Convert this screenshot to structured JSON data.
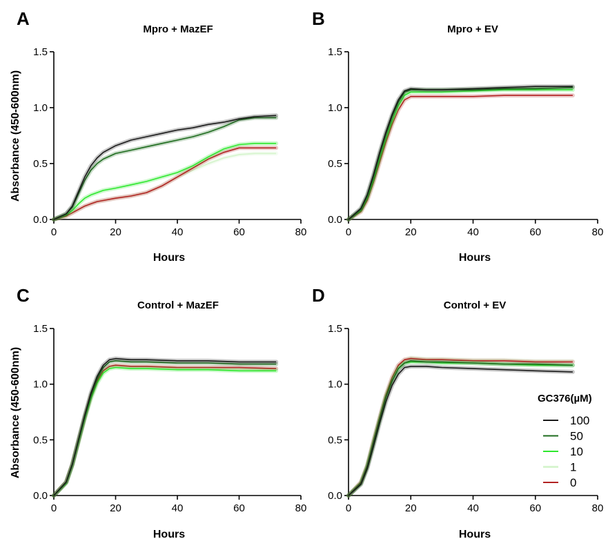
{
  "chart_data": [
    {
      "panel": "A",
      "type": "line",
      "title": "Mpro + MazEF",
      "xlabel": "Hours",
      "ylabel": "Absorbance (450-600nm)",
      "xlim": [
        0,
        80
      ],
      "ylim": [
        0,
        1.5
      ],
      "xticks": [
        "0",
        "20",
        "40",
        "60",
        "80"
      ],
      "yticks": [
        "0.0",
        "0.5",
        "1.0",
        "1.5"
      ],
      "x": [
        0,
        4,
        6,
        8,
        10,
        12,
        14,
        16,
        20,
        25,
        30,
        35,
        40,
        45,
        50,
        55,
        60,
        65,
        72
      ],
      "series": [
        {
          "name": "100",
          "values": [
            0.0,
            0.05,
            0.12,
            0.25,
            0.38,
            0.48,
            0.55,
            0.6,
            0.66,
            0.71,
            0.74,
            0.77,
            0.8,
            0.82,
            0.85,
            0.87,
            0.9,
            0.92,
            0.93
          ]
        },
        {
          "name": "50",
          "values": [
            0.0,
            0.05,
            0.11,
            0.23,
            0.35,
            0.44,
            0.5,
            0.54,
            0.59,
            0.62,
            0.65,
            0.68,
            0.71,
            0.74,
            0.78,
            0.83,
            0.89,
            0.91,
            0.91
          ]
        },
        {
          "name": "10",
          "values": [
            0.0,
            0.04,
            0.08,
            0.14,
            0.19,
            0.22,
            0.24,
            0.26,
            0.28,
            0.31,
            0.34,
            0.38,
            0.42,
            0.48,
            0.56,
            0.63,
            0.67,
            0.68,
            0.68
          ]
        },
        {
          "name": "1",
          "values": [
            0.0,
            0.03,
            0.06,
            0.09,
            0.12,
            0.14,
            0.16,
            0.17,
            0.19,
            0.21,
            0.24,
            0.3,
            0.38,
            0.44,
            0.5,
            0.55,
            0.58,
            0.59,
            0.59
          ]
        },
        {
          "name": "0",
          "values": [
            0.0,
            0.03,
            0.06,
            0.09,
            0.12,
            0.14,
            0.16,
            0.17,
            0.19,
            0.21,
            0.24,
            0.3,
            0.38,
            0.46,
            0.54,
            0.6,
            0.64,
            0.64,
            0.64
          ]
        }
      ]
    },
    {
      "panel": "B",
      "type": "line",
      "title": "Mpro + EV",
      "xlabel": "Hours",
      "ylabel": "",
      "xlim": [
        0,
        80
      ],
      "ylim": [
        0,
        1.5
      ],
      "xticks": [
        "0",
        "20",
        "40",
        "60",
        "80"
      ],
      "yticks": [
        "0.0",
        "0.5",
        "1.0",
        "1.5"
      ],
      "x": [
        0,
        4,
        6,
        8,
        10,
        12,
        14,
        16,
        18,
        20,
        25,
        30,
        40,
        50,
        60,
        72
      ],
      "series": [
        {
          "name": "100",
          "values": [
            0.0,
            0.1,
            0.22,
            0.4,
            0.6,
            0.78,
            0.94,
            1.07,
            1.15,
            1.17,
            1.16,
            1.16,
            1.17,
            1.18,
            1.19,
            1.19
          ]
        },
        {
          "name": "50",
          "values": [
            0.0,
            0.09,
            0.21,
            0.38,
            0.58,
            0.76,
            0.92,
            1.05,
            1.14,
            1.16,
            1.16,
            1.16,
            1.16,
            1.17,
            1.17,
            1.18
          ]
        },
        {
          "name": "10",
          "values": [
            0.0,
            0.08,
            0.19,
            0.35,
            0.54,
            0.72,
            0.88,
            1.02,
            1.11,
            1.14,
            1.14,
            1.14,
            1.15,
            1.16,
            1.16,
            1.16
          ]
        },
        {
          "name": "1",
          "values": [
            0.0,
            0.08,
            0.19,
            0.35,
            0.54,
            0.72,
            0.88,
            1.02,
            1.12,
            1.16,
            1.16,
            1.16,
            1.17,
            1.17,
            1.18,
            1.18
          ]
        },
        {
          "name": "0",
          "values": [
            0.0,
            0.07,
            0.17,
            0.33,
            0.51,
            0.69,
            0.85,
            0.98,
            1.07,
            1.1,
            1.1,
            1.1,
            1.1,
            1.11,
            1.11,
            1.11
          ]
        }
      ]
    },
    {
      "panel": "C",
      "type": "line",
      "title": "Control + MazEF",
      "xlabel": "Hours",
      "ylabel": "Absorbance (450-600nm)",
      "xlim": [
        0,
        80
      ],
      "ylim": [
        0,
        1.5
      ],
      "xticks": [
        "0",
        "20",
        "40",
        "60",
        "80"
      ],
      "yticks": [
        "0.0",
        "0.5",
        "1.0",
        "1.5"
      ],
      "x": [
        0,
        4,
        6,
        8,
        10,
        12,
        14,
        16,
        18,
        20,
        25,
        30,
        40,
        50,
        60,
        72
      ],
      "series": [
        {
          "name": "100",
          "values": [
            0.0,
            0.12,
            0.28,
            0.5,
            0.72,
            0.92,
            1.07,
            1.17,
            1.22,
            1.23,
            1.22,
            1.22,
            1.21,
            1.21,
            1.2,
            1.2
          ]
        },
        {
          "name": "50",
          "values": [
            0.0,
            0.12,
            0.28,
            0.5,
            0.71,
            0.9,
            1.05,
            1.15,
            1.2,
            1.21,
            1.2,
            1.2,
            1.19,
            1.19,
            1.18,
            1.18
          ]
        },
        {
          "name": "10",
          "values": [
            0.0,
            0.11,
            0.27,
            0.48,
            0.69,
            0.87,
            1.01,
            1.1,
            1.14,
            1.15,
            1.14,
            1.14,
            1.13,
            1.13,
            1.12,
            1.12
          ]
        },
        {
          "name": "1",
          "values": [
            0.0,
            0.12,
            0.28,
            0.49,
            0.7,
            0.89,
            1.03,
            1.12,
            1.16,
            1.17,
            1.16,
            1.16,
            1.15,
            1.15,
            1.14,
            1.14
          ]
        },
        {
          "name": "0",
          "values": [
            0.0,
            0.12,
            0.28,
            0.49,
            0.7,
            0.89,
            1.03,
            1.12,
            1.16,
            1.17,
            1.16,
            1.16,
            1.15,
            1.15,
            1.15,
            1.14
          ]
        }
      ]
    },
    {
      "panel": "D",
      "type": "line",
      "title": "Control + EV",
      "xlabel": "Hours",
      "ylabel": "",
      "xlim": [
        0,
        80
      ],
      "ylim": [
        0,
        1.5
      ],
      "xticks": [
        "0",
        "20",
        "40",
        "60",
        "80"
      ],
      "yticks": [
        "0.0",
        "0.5",
        "1.0",
        "1.5"
      ],
      "x": [
        0,
        4,
        6,
        8,
        10,
        12,
        14,
        16,
        18,
        20,
        25,
        30,
        40,
        50,
        60,
        72
      ],
      "legend": {
        "title": "GC376(µM)",
        "placement": "right"
      },
      "series": [
        {
          "name": "100",
          "values": [
            0.0,
            0.1,
            0.24,
            0.44,
            0.65,
            0.84,
            0.99,
            1.09,
            1.15,
            1.16,
            1.16,
            1.15,
            1.14,
            1.13,
            1.12,
            1.11
          ]
        },
        {
          "name": "50",
          "values": [
            0.0,
            0.11,
            0.26,
            0.47,
            0.68,
            0.88,
            1.03,
            1.14,
            1.19,
            1.21,
            1.2,
            1.2,
            1.19,
            1.18,
            1.18,
            1.17
          ]
        },
        {
          "name": "10",
          "values": [
            0.0,
            0.11,
            0.26,
            0.47,
            0.68,
            0.88,
            1.03,
            1.14,
            1.19,
            1.2,
            1.2,
            1.19,
            1.19,
            1.18,
            1.17,
            1.17
          ]
        },
        {
          "name": "1",
          "values": [
            0.0,
            0.12,
            0.27,
            0.49,
            0.7,
            0.9,
            1.06,
            1.17,
            1.22,
            1.24,
            1.23,
            1.23,
            1.22,
            1.22,
            1.21,
            1.21
          ]
        },
        {
          "name": "0",
          "values": [
            0.0,
            0.12,
            0.27,
            0.49,
            0.7,
            0.9,
            1.06,
            1.17,
            1.22,
            1.23,
            1.22,
            1.22,
            1.21,
            1.21,
            1.2,
            1.2
          ]
        }
      ]
    }
  ],
  "series_colors": {
    "100": "#1a1a1a",
    "50": "#1d6b1d",
    "10": "#2ee82e",
    "1": "#d8f5d0",
    "0": "#b22222"
  },
  "legend": {
    "title": "GC376(µM)",
    "items": [
      "100",
      "50",
      "10",
      "1",
      "0"
    ]
  }
}
